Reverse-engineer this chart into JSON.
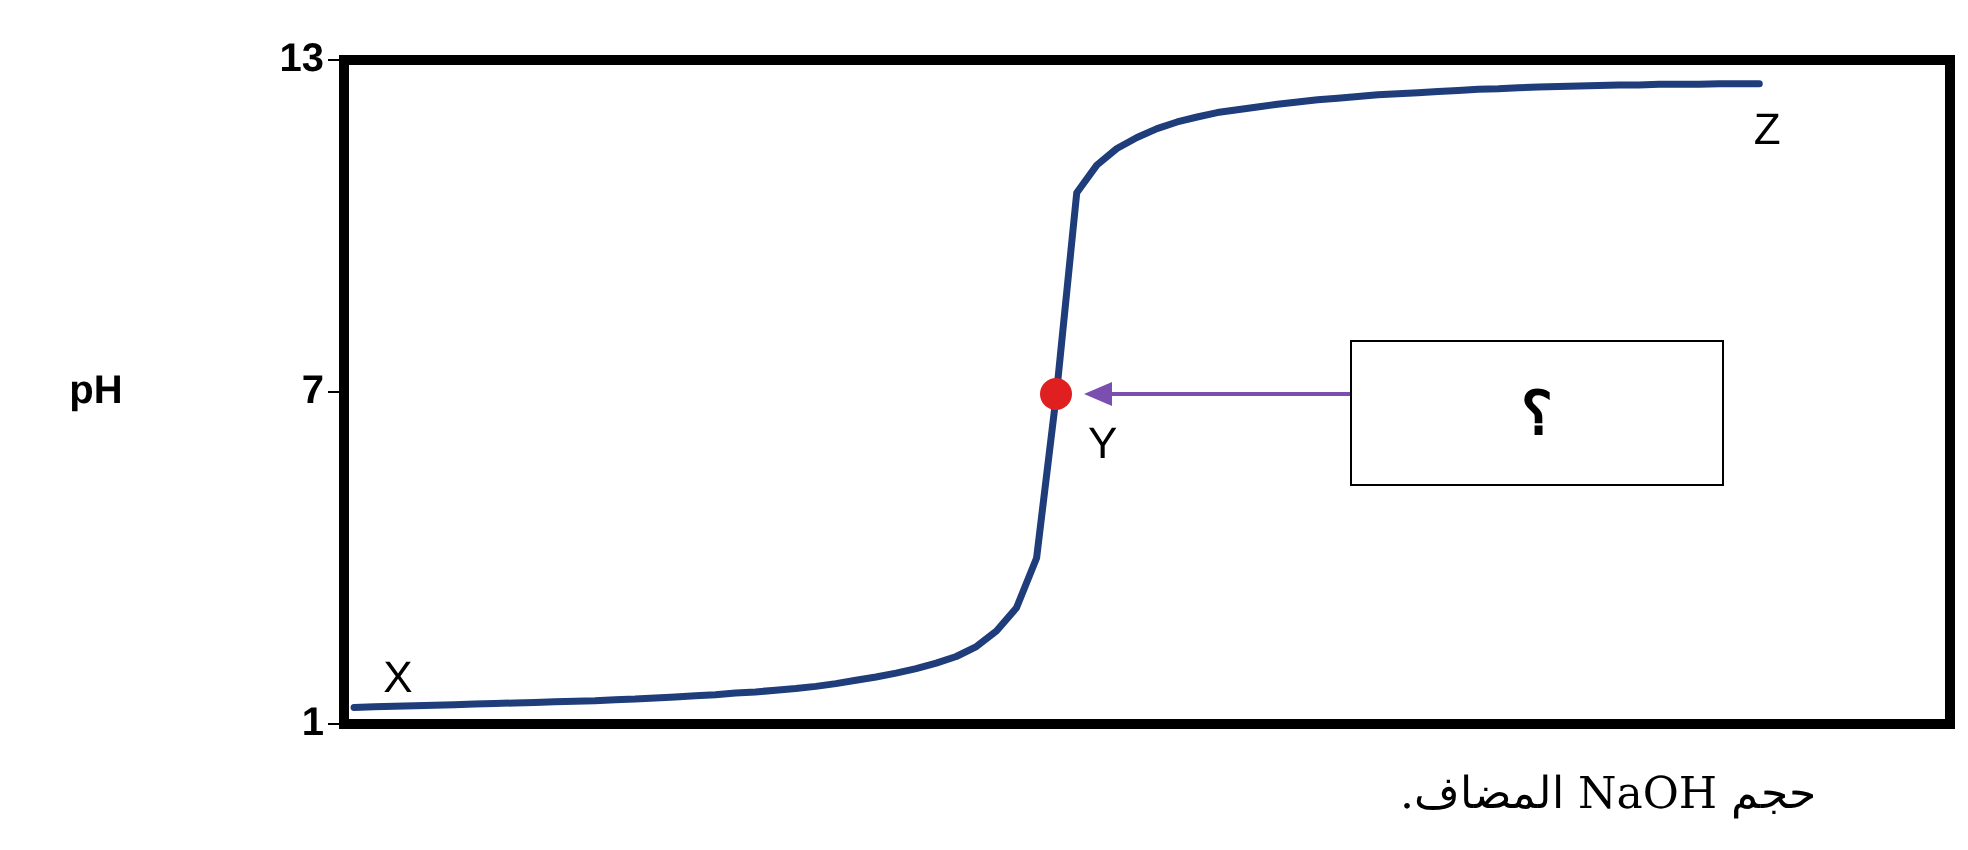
{
  "chart_data": {
    "type": "line",
    "xlabel": "حجم NaOH المضاف.",
    "ylabel": "pH",
    "ylim": [
      1,
      13
    ],
    "yticks": [
      1,
      7,
      13
    ],
    "tick_labels": "y",
    "grid": false,
    "categories": [
      null,
      null,
      null,
      null,
      null,
      null,
      null,
      null,
      null,
      null,
      null,
      null,
      null,
      null,
      null,
      null,
      null,
      null,
      null,
      null,
      null,
      null,
      null,
      null,
      null,
      null,
      null,
      null,
      null,
      null,
      null,
      null,
      null,
      null,
      null,
      null,
      null,
      null,
      null,
      null,
      null,
      null,
      null,
      null,
      null,
      null,
      null,
      null,
      null,
      null,
      null,
      null,
      null,
      null,
      null,
      null,
      null,
      null,
      null,
      null,
      null,
      null,
      null,
      null,
      null,
      null,
      null,
      null,
      null,
      null,
      null,
      null,
      null,
      null,
      null,
      null,
      null,
      null,
      null,
      null
    ],
    "series": [
      {
        "color": "#1f3d7a",
        "marker": "none",
        "values": [
          1.3,
          1.31,
          1.32,
          1.33,
          1.34,
          1.35,
          1.36,
          1.37,
          1.38,
          1.39,
          1.4,
          1.41,
          1.42,
          1.44,
          1.45,
          1.47,
          1.49,
          1.51,
          1.53,
          1.56,
          1.58,
          1.61,
          1.64,
          1.68,
          1.73,
          1.79,
          1.85,
          1.92,
          2.0,
          2.1,
          2.22,
          2.4,
          2.68,
          3.1,
          4.0,
          7,
          10.6,
          11.1,
          11.4,
          11.6,
          11.76,
          11.88,
          11.97,
          12.05,
          12.1,
          12.15,
          12.2,
          12.24,
          12.28,
          12.31,
          12.34,
          12.37,
          12.39,
          12.41,
          12.43,
          12.45,
          12.47,
          12.48,
          12.5,
          12.51,
          12.52,
          12.53,
          12.54,
          12.55,
          12.55,
          12.56,
          12.56,
          12.56,
          12.57,
          12.57,
          12.57,
          null,
          null,
          null,
          null,
          null,
          null,
          null,
          null,
          null
        ]
      }
    ],
    "annotations": [
      {
        "text": "X",
        "y": 1.3
      },
      "Y",
      {
        "text": "Z",
        "y": 12.57
      },
      "؟"
    ]
  }
}
